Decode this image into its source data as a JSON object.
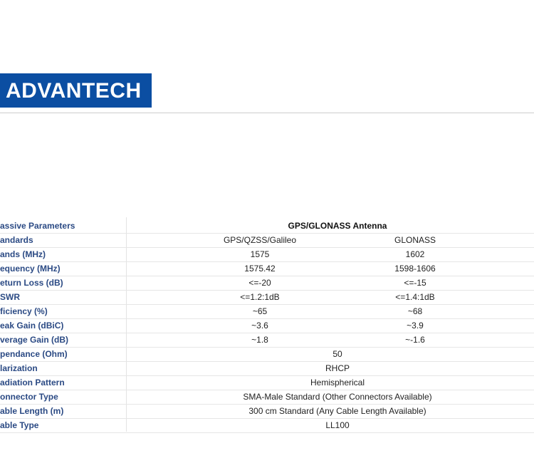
{
  "header": {
    "logo": "ADVANTECH"
  },
  "table": {
    "header_label": "assive Parameters",
    "header_title": "GPS/GLONASS Antenna",
    "rows": [
      [
        "andards",
        "GPS/QZSS/Galileo",
        "GLONASS"
      ],
      [
        "ands (MHz)",
        "1575",
        "1602"
      ],
      [
        "equency (MHz)",
        "1575.42",
        "1598-1606"
      ],
      [
        "eturn Loss (dB)",
        "<=-20",
        "<=-15"
      ],
      [
        "SWR",
        "<=1.2:1dB",
        "<=1.4:1dB"
      ],
      [
        "ficiency (%)",
        "~65",
        "~68"
      ],
      [
        "eak Gain (dBiC)",
        "~3.6",
        "~3.9"
      ],
      [
        "verage Gain (dB)",
        "~1.8",
        "~-1.6"
      ],
      [
        "pendance (Ohm)",
        "50"
      ],
      [
        "larization",
        "RHCP"
      ],
      [
        "adiation Pattern",
        "Hemispherical"
      ],
      [
        "onnector Type",
        "SMA-Male Standard (Other Connectors Available)"
      ],
      [
        "able Length (m)",
        "300 cm Standard (Any Cable Length Available)"
      ],
      [
        "able Type",
        "LL100"
      ]
    ]
  }
}
